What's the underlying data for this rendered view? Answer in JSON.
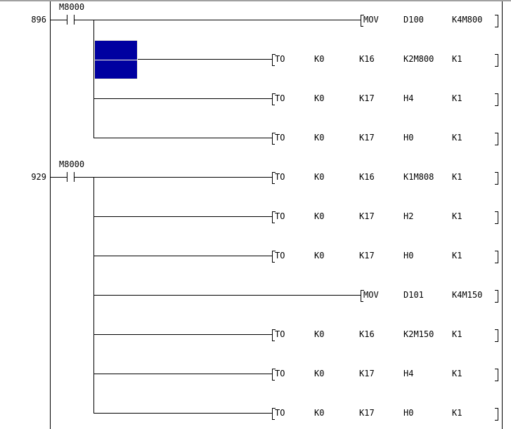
{
  "rungs": [
    {
      "step": "896",
      "contact": "M8000",
      "instructions": [
        {
          "type": "mov",
          "ops": [
            "MOV",
            "D100",
            "K4M800"
          ]
        },
        {
          "type": "to",
          "ops": [
            "TO",
            "K0",
            "K16",
            "K2M800",
            "K1"
          ]
        },
        {
          "type": "to",
          "ops": [
            "TO",
            "K0",
            "K17",
            "H4",
            "K1"
          ]
        },
        {
          "type": "to",
          "ops": [
            "TO",
            "K0",
            "K17",
            "H0",
            "K1"
          ]
        }
      ]
    },
    {
      "step": "929",
      "contact": "M8000",
      "instructions": [
        {
          "type": "to",
          "ops": [
            "TO",
            "K0",
            "K16",
            "K1M808",
            "K1"
          ]
        },
        {
          "type": "to",
          "ops": [
            "TO",
            "K0",
            "K17",
            "H2",
            "K1"
          ]
        },
        {
          "type": "to",
          "ops": [
            "TO",
            "K0",
            "K17",
            "H0",
            "K1"
          ]
        },
        {
          "type": "mov",
          "ops": [
            "MOV",
            "D101",
            "K4M150"
          ]
        },
        {
          "type": "to",
          "ops": [
            "TO",
            "K0",
            "K16",
            "K2M150",
            "K1"
          ]
        },
        {
          "type": "to",
          "ops": [
            "TO",
            "K0",
            "K17",
            "H4",
            "K1"
          ]
        },
        {
          "type": "to",
          "ops": [
            "TO",
            "K0",
            "K17",
            "H0",
            "K1"
          ]
        }
      ]
    }
  ],
  "colors": {
    "cursor": "#0000a0",
    "rail": "#000000"
  }
}
